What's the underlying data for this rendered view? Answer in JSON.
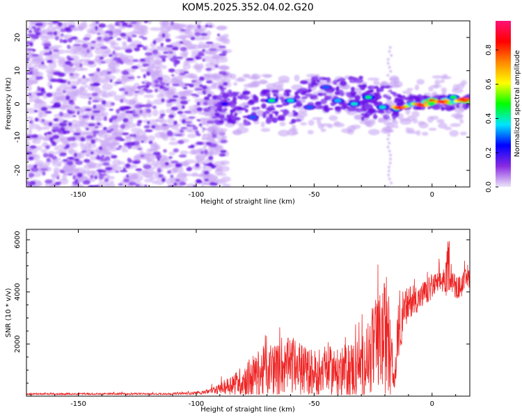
{
  "title": "KOM5.2025.352.04.02.G20",
  "colors": {
    "snr_line": "#ee2222",
    "cluster": "#6a11e6",
    "noise": "#8a44ee",
    "faint": "#c8a6f4",
    "colormap": [
      "#ece6f8",
      "#8a2be2",
      "#0000ff",
      "#00e5ff",
      "#00ff00",
      "#ffff00",
      "#ff8800",
      "#ff0000",
      "#ff1177"
    ]
  },
  "chart_data": [
    {
      "id": "spectrogram",
      "type": "heatmap",
      "xlabel": "Height of straight line (km)",
      "ylabel": "Frequency (Hz)",
      "xlim": [
        -172,
        16
      ],
      "ylim": [
        -25,
        25
      ],
      "xticks": [
        -150,
        -100,
        -50,
        0
      ],
      "yticks": [
        -20,
        -10,
        0,
        10,
        20
      ],
      "colorbar": {
        "label": "Normalized spectral amplitude",
        "range": [
          0,
          0.97
        ],
        "ticks": [
          "0.0",
          "0.2",
          "0.4",
          "0.6",
          "0.8"
        ]
      },
      "description_points": [
        {
          "x": -88,
          "y": 0,
          "v": 0.25
        },
        {
          "x": -76,
          "y": -4,
          "v": 0.3
        },
        {
          "x": -68,
          "y": 1,
          "v": 0.45
        },
        {
          "x": -60,
          "y": 1,
          "v": 0.4
        },
        {
          "x": -52,
          "y": -1,
          "v": 0.3
        },
        {
          "x": -45,
          "y": 5,
          "v": 0.3
        },
        {
          "x": -40,
          "y": 1,
          "v": 0.35
        },
        {
          "x": -33,
          "y": 0,
          "v": 0.4
        },
        {
          "x": -27,
          "y": 2,
          "v": 0.45
        },
        {
          "x": -21,
          "y": -1,
          "v": 0.4
        },
        {
          "x": -15,
          "y": -1.5,
          "v": 0.45
        },
        {
          "x": -8,
          "y": 0,
          "v": 0.55
        },
        {
          "x": -2,
          "y": 0.5,
          "v": 0.75
        },
        {
          "x": 0,
          "y": 1,
          "v": 0.85
        },
        {
          "x": 6,
          "y": 1,
          "v": 0.7
        },
        {
          "x": 9,
          "y": 2,
          "v": 0.5
        },
        {
          "x": 14,
          "y": 1,
          "v": 0.9
        }
      ]
    },
    {
      "id": "snr",
      "type": "line",
      "xlabel": "Height of straight line (km)",
      "ylabel": "SNR (10 * v/v)",
      "xlim": [
        -172,
        16
      ],
      "ylim": [
        0,
        6400
      ],
      "xticks": [
        -150,
        -100,
        -50,
        0
      ],
      "yticks": [
        2000,
        4000,
        6000
      ],
      "series": [
        {
          "name": "SNR",
          "x": [
            -172,
            -150,
            -130,
            -110,
            -100,
            -95,
            -90,
            -85,
            -80,
            -75,
            -72,
            -68,
            -65,
            -60,
            -55,
            -50,
            -45,
            -40,
            -35,
            -30,
            -27,
            -24,
            -21,
            -19,
            -16,
            -14,
            -12,
            -10,
            -8,
            -6,
            -4,
            -2,
            0,
            2,
            4,
            6,
            7,
            8,
            10,
            12,
            14,
            16
          ],
          "mean": [
            80,
            80,
            85,
            90,
            120,
            180,
            280,
            450,
            600,
            800,
            900,
            1100,
            1000,
            1200,
            1000,
            900,
            1000,
            900,
            1000,
            1100,
            1500,
            1900,
            2200,
            2400,
            500,
            2800,
            3200,
            3500,
            3800,
            3700,
            3900,
            4000,
            4200,
            4300,
            4400,
            4500,
            5200,
            4700,
            4100,
            4200,
            4400,
            4600
          ],
          "amp": [
            40,
            40,
            40,
            40,
            60,
            100,
            200,
            400,
            600,
            900,
            1000,
            1100,
            1000,
            1100,
            1000,
            900,
            1000,
            900,
            1100,
            1200,
            1500,
            1800,
            2000,
            2400,
            400,
            1300,
            900,
            700,
            600,
            500,
            500,
            500,
            500,
            450,
            450,
            700,
            1200,
            600,
            450,
            450,
            450,
            400
          ]
        }
      ]
    }
  ]
}
